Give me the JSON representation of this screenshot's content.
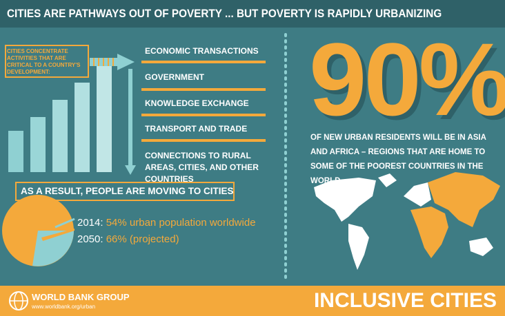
{
  "header": {
    "title": "CITIES ARE PATHWAYS OUT OF POVERTY ... BUT POVERTY IS RAPIDLY URBANIZING"
  },
  "left": {
    "intro": "CITIES CONCENTRATE ACTIVITIES THAT ARE CRITICAL TO A COUNTRY'S DEVELOPMENT:",
    "items": [
      "ECONOMIC TRANSACTIONS",
      "GOVERNMENT",
      "KNOWLEDGE EXCHANGE",
      "TRANSPORT AND TRADE",
      "CONNECTIONS TO RURAL AREAS, CITIES, AND OTHER COUNTRIES"
    ],
    "result": "AS A RESULT, PEOPLE ARE MOVING TO CITIES",
    "stats": [
      {
        "year": "2014:",
        "text": "54% urban population worldwide"
      },
      {
        "year": "2050:",
        "text": "66% (projected)"
      }
    ]
  },
  "right": {
    "big": "90%",
    "text": "OF NEW URBAN RESIDENTS WILL BE IN ASIA AND AFRICA – REGIONS THAT ARE HOME TO SOME OF THE POOREST COUNTRIES IN THE WORLD."
  },
  "footer": {
    "logo": "WORLD BANK GROUP",
    "url": "www.worldbank.org/urban",
    "tag": "INCLUSIVE CITIES"
  }
}
